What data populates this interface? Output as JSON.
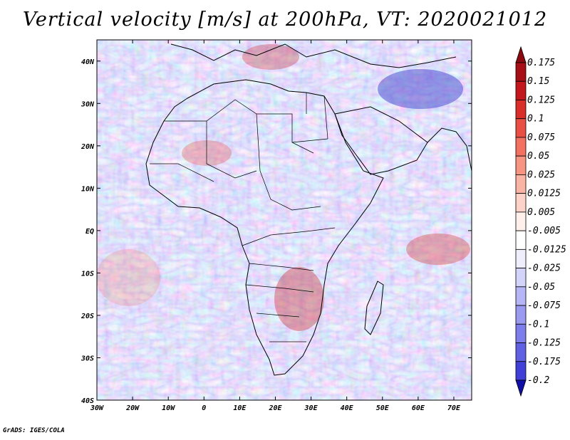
{
  "title": "Vertical velocity [m/s] at 200hPa, VT: 2020021012",
  "credit": "GrADS: IGES/COLA",
  "map": {
    "region": "Africa",
    "lat_range": [
      -40,
      45
    ],
    "lon_range": [
      -30,
      75
    ],
    "lat_ticks": [
      {
        "value": 40,
        "label": "40N"
      },
      {
        "value": 30,
        "label": "30N"
      },
      {
        "value": 20,
        "label": "20N"
      },
      {
        "value": 10,
        "label": "10N"
      },
      {
        "value": 0,
        "label": "EQ"
      },
      {
        "value": -10,
        "label": "10S"
      },
      {
        "value": -20,
        "label": "20S"
      },
      {
        "value": -30,
        "label": "30S"
      },
      {
        "value": -40,
        "label": "40S"
      }
    ],
    "lon_ticks": [
      {
        "value": -30,
        "label": "30W"
      },
      {
        "value": -20,
        "label": "20W"
      },
      {
        "value": -10,
        "label": "10W"
      },
      {
        "value": 0,
        "label": "0"
      },
      {
        "value": 10,
        "label": "10E"
      },
      {
        "value": 20,
        "label": "20E"
      },
      {
        "value": 30,
        "label": "30E"
      },
      {
        "value": 40,
        "label": "40E"
      },
      {
        "value": 50,
        "label": "50E"
      },
      {
        "value": 60,
        "label": "60E"
      },
      {
        "value": 70,
        "label": "70E"
      }
    ]
  },
  "colorbar": {
    "levels": [
      {
        "label": "0.175",
        "color": "#a50f15"
      },
      {
        "label": "0.15",
        "color": "#c3161d"
      },
      {
        "label": "0.125",
        "color": "#da2e2a"
      },
      {
        "label": "0.1",
        "color": "#ea4f44"
      },
      {
        "label": "0.075",
        "color": "#f27161"
      },
      {
        "label": "0.05",
        "color": "#f79482"
      },
      {
        "label": "0.025",
        "color": "#fab4a5"
      },
      {
        "label": "0.0125",
        "color": "#fdd3c9"
      },
      {
        "label": "0.005",
        "color": "#fff0ec"
      },
      {
        "label": "-0.005",
        "color": "#ffffff"
      },
      {
        "label": "-0.0125",
        "color": "#eeeefd"
      },
      {
        "label": "-0.025",
        "color": "#d4d4fb"
      },
      {
        "label": "-0.05",
        "color": "#b6b6f6"
      },
      {
        "label": "-0.075",
        "color": "#9a9af1"
      },
      {
        "label": "-0.1",
        "color": "#7d7deb"
      },
      {
        "label": "-0.125",
        "color": "#6060e4"
      },
      {
        "label": "-0.175",
        "color": "#4040d8"
      },
      {
        "label": "-0.2",
        "color": "#2222c0"
      }
    ],
    "top_color": "#8b0a0f",
    "bottom_color": "#1010a8"
  }
}
